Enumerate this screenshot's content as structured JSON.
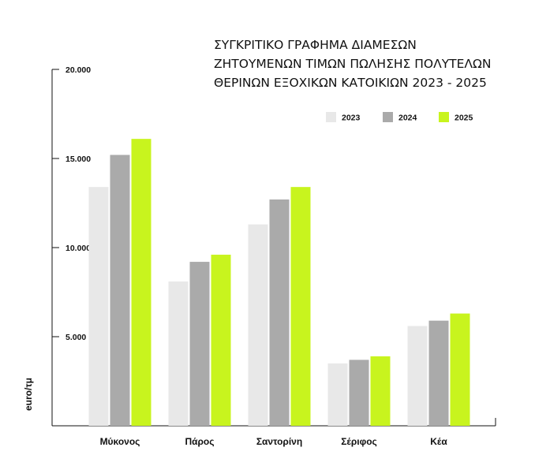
{
  "chart_data": {
    "type": "bar",
    "title_lines": [
      "ΣΥΓΚΡΙΤΙΚΟ ΓΡΑΦΗΜΑ ΔΙΑΜΕΣΩΝ",
      "ΖΗΤΟΥΜΕΝΩΝ ΤΙΜΩΝ ΠΩΛΗΣΗΣ ΠΟΛΥΤΕΛΩΝ",
      "ΘΕΡΙΝΩΝ ΕΞΟΧΙΚΩΝ ΚΑΤΟΙΚΙΩΝ 2023 - 2025"
    ],
    "ylabel": "euro/τμ",
    "ylim": [
      0,
      20000
    ],
    "yticks": [
      5000,
      10000,
      15000,
      20000
    ],
    "ytick_labels": [
      "5.000",
      "10.000",
      "15.000",
      "20.000"
    ],
    "grid": false,
    "legend_position": "top-right",
    "categories": [
      "Μύκονος",
      "Πάρος",
      "Σαντορίνη",
      "Σέριφος",
      "Κέα"
    ],
    "series": [
      {
        "name": "2023",
        "color": "#e8e8e8",
        "values": [
          13400,
          8100,
          11300,
          3500,
          5600
        ]
      },
      {
        "name": "2024",
        "color": "#aaaaaa",
        "values": [
          15200,
          9200,
          12700,
          3700,
          5900
        ]
      },
      {
        "name": "2025",
        "color": "#c8f41e",
        "values": [
          16100,
          9600,
          13400,
          3900,
          6300
        ]
      }
    ]
  }
}
